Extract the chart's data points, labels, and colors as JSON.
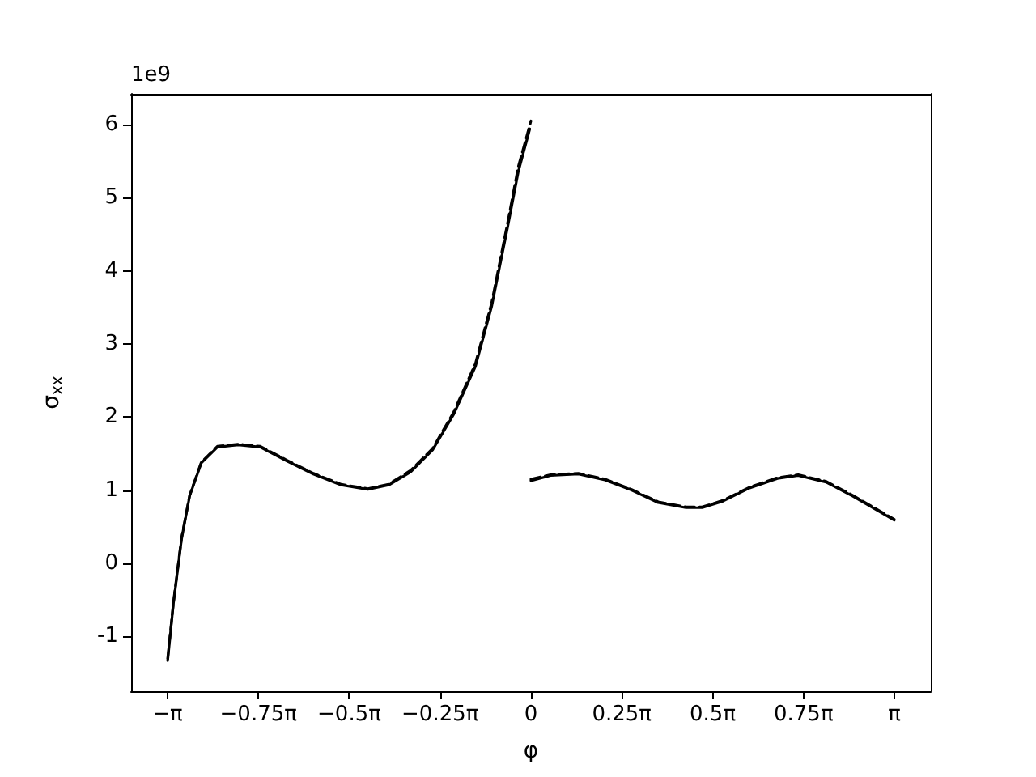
{
  "chart_data": {
    "type": "line",
    "xlabel": "φ",
    "ylabel": "σ$_{xx}$",
    "annotations": [
      "1e9"
    ],
    "xlim": [
      -3.456,
      3.456
    ],
    "ylim": [
      -1.75,
      6.42
    ],
    "xticks": [
      {
        "value": -3.14159,
        "label": "−π"
      },
      {
        "value": -2.35619,
        "label": "−0.75π"
      },
      {
        "value": -1.5708,
        "label": "−0.5π"
      },
      {
        "value": -0.7854,
        "label": "−0.25π"
      },
      0,
      {
        "value": 0.7854,
        "label": "0.25π"
      },
      {
        "value": 1.5708,
        "label": "0.5π"
      },
      {
        "value": 2.35619,
        "label": "0.75π"
      },
      {
        "value": 3.14159,
        "label": "π"
      }
    ],
    "yticks": [
      -1,
      0,
      1,
      2,
      3,
      4,
      5,
      6
    ],
    "grid": false,
    "marker": "none",
    "series": [
      {
        "color": "#000000",
        "line_style": "solid",
        "x": [
          -3.14,
          -3.09,
          -3.02,
          -2.95,
          -2.85,
          -2.71,
          -2.53,
          -2.34,
          -2.11,
          -1.88,
          -1.64,
          -1.41,
          -1.23,
          -1.04,
          -0.85,
          -0.67,
          -0.48,
          -0.34,
          -0.2,
          -0.11,
          -0.01
        ],
        "values": [
          -1.33,
          -0.55,
          0.33,
          0.92,
          1.37,
          1.59,
          1.62,
          1.59,
          1.4,
          1.22,
          1.07,
          1.01,
          1.07,
          1.25,
          1.55,
          2.03,
          2.69,
          3.51,
          4.61,
          5.35,
          5.94
        ]
      },
      {
        "color": "#000000",
        "line_style": "solid",
        "x": [
          0,
          0.17,
          0.41,
          0.64,
          0.87,
          1.1,
          1.34,
          1.48,
          1.66,
          1.89,
          2.13,
          2.31,
          2.55,
          2.78,
          3.14
        ],
        "values": [
          1.13,
          1.2,
          1.22,
          1.14,
          1.0,
          0.83,
          0.76,
          0.76,
          0.85,
          1.03,
          1.16,
          1.2,
          1.11,
          0.92,
          0.59
        ]
      },
      {
        "color": "#000000",
        "line_style": "dashed",
        "x": [
          -3.14,
          -3.09,
          -3.02,
          -2.95,
          -2.85,
          -2.71,
          -2.53,
          -2.34,
          -2.11,
          -1.88,
          -1.64,
          -1.41,
          -1.23,
          -1.04,
          -0.85,
          -0.67,
          -0.48,
          -0.34,
          -0.2,
          -0.11,
          0
        ],
        "values": [
          -1.3,
          -0.53,
          0.35,
          0.93,
          1.38,
          1.6,
          1.63,
          1.6,
          1.41,
          1.23,
          1.08,
          1.02,
          1.08,
          1.27,
          1.57,
          2.06,
          2.73,
          3.56,
          4.67,
          5.42,
          6.05
        ]
      },
      {
        "color": "#000000",
        "line_style": "dashed",
        "x": [
          0,
          0.17,
          0.41,
          0.64,
          0.87,
          1.1,
          1.34,
          1.48,
          1.66,
          1.89,
          2.13,
          2.31,
          2.55,
          2.78,
          3.14
        ],
        "values": [
          1.15,
          1.21,
          1.23,
          1.15,
          1.01,
          0.84,
          0.77,
          0.77,
          0.86,
          1.04,
          1.17,
          1.21,
          1.12,
          0.93,
          0.6
        ]
      }
    ]
  }
}
